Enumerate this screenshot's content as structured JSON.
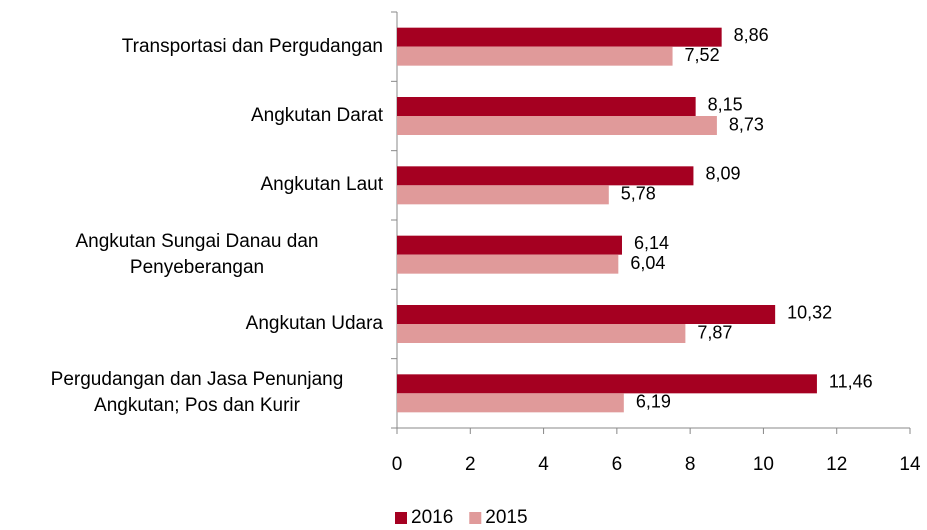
{
  "chart_data": {
    "type": "bar",
    "orientation": "horizontal",
    "categories": [
      "Transportasi dan Pergudangan",
      "Angkutan Darat",
      "Angkutan Laut",
      "Angkutan Sungai Danau dan Penyeberangan",
      "Angkutan Udara",
      "Pergudangan dan Jasa Penunjang Angkutan; Pos dan Kurir"
    ],
    "series": [
      {
        "name": "2016",
        "color": "#a50021",
        "values": [
          8.86,
          8.15,
          8.09,
          6.14,
          10.32,
          11.46
        ],
        "value_labels": [
          "8,86",
          "8,15",
          "8,09",
          "6,14",
          "10,32",
          "11,46"
        ]
      },
      {
        "name": "2015",
        "color": "#e09a9a",
        "values": [
          7.52,
          8.73,
          5.78,
          6.04,
          7.87,
          6.19
        ],
        "value_labels": [
          "7,52",
          "8,73",
          "5,78",
          "6,04",
          "7,87",
          "6,19"
        ]
      }
    ],
    "xlim": [
      0,
      14
    ],
    "xticks": [
      0,
      2,
      4,
      6,
      8,
      10,
      12,
      14
    ],
    "legend": "bottom"
  }
}
